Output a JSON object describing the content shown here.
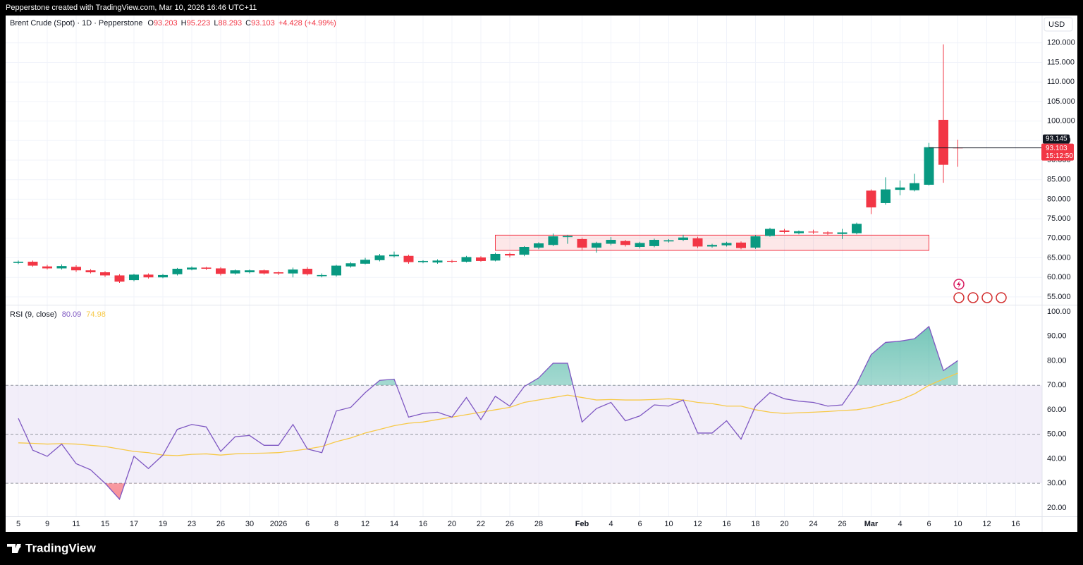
{
  "header": {
    "text": "Pepperstone created with TradingView.com, Mar 10, 2026 16:46 UTC+11",
    "currency": "USD"
  },
  "footer": {
    "brand": "TradingView"
  },
  "chart_data": [
    {
      "type": "candlestick",
      "title": "Brent Crude (Spot) · 1D · Pepperstone",
      "ohlc_prefixes": [
        "O",
        "H",
        "L",
        "C"
      ],
      "change": "+4.428",
      "change_pct": "(+4.99%)",
      "categories": [
        "5",
        null,
        "9",
        null,
        "11",
        null,
        "15",
        null,
        "17",
        null,
        "19",
        null,
        "23",
        null,
        "26",
        null,
        "30",
        null,
        "2026",
        null,
        "6",
        null,
        "8",
        null,
        "12",
        null,
        "14",
        null,
        "16",
        null,
        "20",
        null,
        "22",
        null,
        "26",
        null,
        "28",
        null,
        null,
        "Feb",
        null,
        "4",
        null,
        "6",
        null,
        "10",
        null,
        "12",
        null,
        "16",
        null,
        "18",
        null,
        "20",
        null,
        "24",
        null,
        "26",
        null,
        "Mar",
        null,
        "4",
        null,
        "6",
        null,
        "10",
        null,
        "12",
        null,
        "16"
      ],
      "open": [
        63.7,
        64.0,
        62.8,
        62.3,
        62.7,
        61.8,
        61.3,
        60.5,
        59.3,
        60.7,
        60.0,
        60.8,
        62.0,
        62.5,
        62.3,
        61.0,
        61.3,
        61.8,
        61.3,
        61.0,
        62.2,
        60.3,
        60.5,
        62.8,
        63.5,
        64.4,
        65.4,
        65.5,
        63.9,
        63.8,
        64.2,
        64.0,
        65.1,
        64.3,
        66.0,
        65.8,
        67.6,
        68.3,
        70.3,
        69.8,
        67.6,
        68.6,
        69.3,
        67.8,
        68.0,
        69.2,
        69.6,
        70.0,
        67.9,
        68.2,
        68.9,
        67.6,
        70.6,
        72.0,
        71.3,
        71.7,
        71.5,
        71.1,
        71.3,
        82.2,
        79.0,
        82.4,
        82.3,
        83.7,
        100.3,
        93.203,
        null,
        null,
        null,
        null
      ],
      "high": [
        64.3,
        64.3,
        63.2,
        63.3,
        63.1,
        62.1,
        61.6,
        60.8,
        60.9,
        61.0,
        60.9,
        62.4,
        62.8,
        62.7,
        62.6,
        62.0,
        62.0,
        62.0,
        61.5,
        62.5,
        62.6,
        61.0,
        63.2,
        63.9,
        65.0,
        66.0,
        66.6,
        65.8,
        64.4,
        64.6,
        64.5,
        65.5,
        65.4,
        66.3,
        66.3,
        68.0,
        69.0,
        71.2,
        70.9,
        70.2,
        69.1,
        70.3,
        69.6,
        69.1,
        69.9,
        69.8,
        70.9,
        70.4,
        68.6,
        69.1,
        69.2,
        70.8,
        72.7,
        72.4,
        72.0,
        72.2,
        71.8,
        72.4,
        74.0,
        82.5,
        85.6,
        84.8,
        86.5,
        94.4,
        119.6,
        95.223,
        null,
        null,
        null,
        null
      ],
      "low": [
        63.4,
        62.7,
        62.0,
        62.0,
        61.4,
        61.0,
        60.1,
        58.6,
        59.0,
        59.7,
        59.8,
        60.5,
        61.8,
        61.9,
        60.5,
        60.7,
        61.0,
        60.7,
        60.6,
        60.0,
        60.5,
        60.0,
        60.2,
        62.5,
        63.3,
        64.1,
        65.1,
        63.5,
        63.6,
        63.5,
        63.7,
        63.8,
        64.0,
        64.1,
        65.1,
        65.4,
        67.2,
        68.0,
        68.6,
        67.0,
        66.3,
        68.2,
        67.9,
        67.4,
        67.7,
        68.9,
        69.3,
        67.5,
        67.6,
        67.9,
        67.2,
        67.3,
        70.4,
        71.2,
        71.0,
        71.1,
        70.8,
        69.8,
        71.0,
        76.2,
        78.6,
        81.0,
        82.0,
        83.5,
        84.2,
        88.293,
        null,
        null,
        null,
        null
      ],
      "close": [
        64.0,
        63.0,
        62.3,
        62.9,
        61.8,
        61.3,
        60.5,
        58.9,
        60.7,
        60.0,
        60.6,
        62.2,
        62.5,
        62.2,
        60.9,
        61.8,
        61.8,
        61.0,
        61.0,
        62.0,
        60.8,
        60.6,
        63.0,
        63.6,
        64.5,
        65.6,
        65.8,
        63.9,
        64.2,
        64.3,
        64.0,
        65.2,
        64.2,
        66.0,
        65.6,
        67.8,
        68.7,
        70.5,
        70.6,
        67.6,
        68.8,
        69.6,
        68.3,
        68.8,
        69.6,
        69.5,
        70.2,
        67.9,
        68.3,
        68.8,
        67.5,
        70.5,
        72.4,
        71.6,
        71.8,
        71.5,
        71.2,
        71.5,
        73.7,
        77.9,
        82.5,
        83.0,
        84.1,
        93.3,
        88.8,
        93.103,
        null,
        null,
        null,
        null
      ],
      "up_color": "#089981",
      "down_color": "#f23645",
      "ylim": [
        53,
        127
      ],
      "yticks": [
        {
          "value": 55,
          "label": "55.000"
        },
        {
          "value": 60,
          "label": "60.000"
        },
        {
          "value": 65,
          "label": "65.000"
        },
        {
          "value": 70,
          "label": "70.000"
        },
        {
          "value": 75,
          "label": "75.000"
        },
        {
          "value": 80,
          "label": "80.000"
        },
        {
          "value": 85,
          "label": "85.000"
        },
        {
          "value": 90,
          "label": "90.000"
        },
        {
          "value": 95,
          "label": "95.000"
        },
        {
          "value": 100,
          "label": "100.000"
        },
        {
          "value": 105,
          "label": "105.000"
        },
        {
          "value": 110,
          "label": "110.000"
        },
        {
          "value": 115,
          "label": "115.000"
        },
        {
          "value": 120,
          "label": "120.000"
        }
      ],
      "grid": true,
      "marker_price": 93.145,
      "countdown": "15:12:50",
      "box": {
        "from": 33,
        "to": 63,
        "low": 66.9,
        "high": 70.8
      }
    },
    {
      "type": "line",
      "title": "RSI (9, close)",
      "series": [
        {
          "color": "#7e57c2",
          "values": [
            56.5,
            43.5,
            41,
            46,
            38,
            35.5,
            30,
            23.5,
            41,
            36,
            41.5,
            52,
            54,
            53,
            43,
            49,
            49.5,
            45.5,
            45.5,
            54,
            44,
            42.5,
            59.5,
            61,
            67,
            72,
            72.5,
            57,
            58.5,
            59,
            57,
            65,
            56,
            65.5,
            61.5,
            69.5,
            73,
            79,
            79,
            55,
            60.5,
            63,
            55.5,
            57.5,
            62,
            61.5,
            64,
            50.5,
            50.5,
            55.5,
            48,
            61.5,
            67,
            64.5,
            63.5,
            63,
            61.5,
            62,
            70.5,
            82.5,
            87.5,
            88,
            89,
            94,
            76,
            80.09,
            null,
            null,
            null,
            null
          ]
        },
        {
          "color": "#f7c948",
          "values": [
            46.5,
            46.3,
            46.0,
            46.2,
            46.0,
            45.5,
            45.0,
            44.0,
            43.0,
            42.5,
            41.5,
            41.3,
            41.8,
            42.0,
            41.5,
            42.0,
            42.2,
            42.3,
            42.5,
            43.2,
            44.0,
            45.0,
            47.0,
            48.5,
            50.5,
            52.0,
            53.5,
            54.5,
            55.0,
            56.0,
            57.0,
            58.0,
            59.0,
            60.0,
            61.0,
            63.0,
            64.0,
            65.0,
            66.0,
            65.0,
            64.0,
            64.2,
            64.0,
            64.0,
            64.2,
            64.5,
            64.0,
            63.0,
            62.5,
            61.5,
            61.5,
            60.0,
            59.0,
            58.5,
            58.8,
            59.0,
            59.3,
            59.7,
            60.0,
            61.0,
            62.5,
            64.0,
            66.5,
            70.0,
            72.5,
            74.98,
            null,
            null,
            null,
            null
          ]
        }
      ],
      "bands": [
        30,
        50,
        70
      ],
      "band_color": "#ede7f6",
      "ylim": [
        16.5,
        102.6
      ],
      "yticks": [
        {
          "value": 20,
          "label": "20.00"
        },
        {
          "value": 30,
          "label": "30.00"
        },
        {
          "value": 40,
          "label": "40.00"
        },
        {
          "value": 50,
          "label": "50.00"
        },
        {
          "value": 60,
          "label": "60.00"
        },
        {
          "value": 70,
          "label": "70.00"
        },
        {
          "value": 80,
          "label": "80.00"
        },
        {
          "value": 90,
          "label": "90.00"
        },
        {
          "value": 100,
          "label": "100.00"
        }
      ]
    }
  ]
}
